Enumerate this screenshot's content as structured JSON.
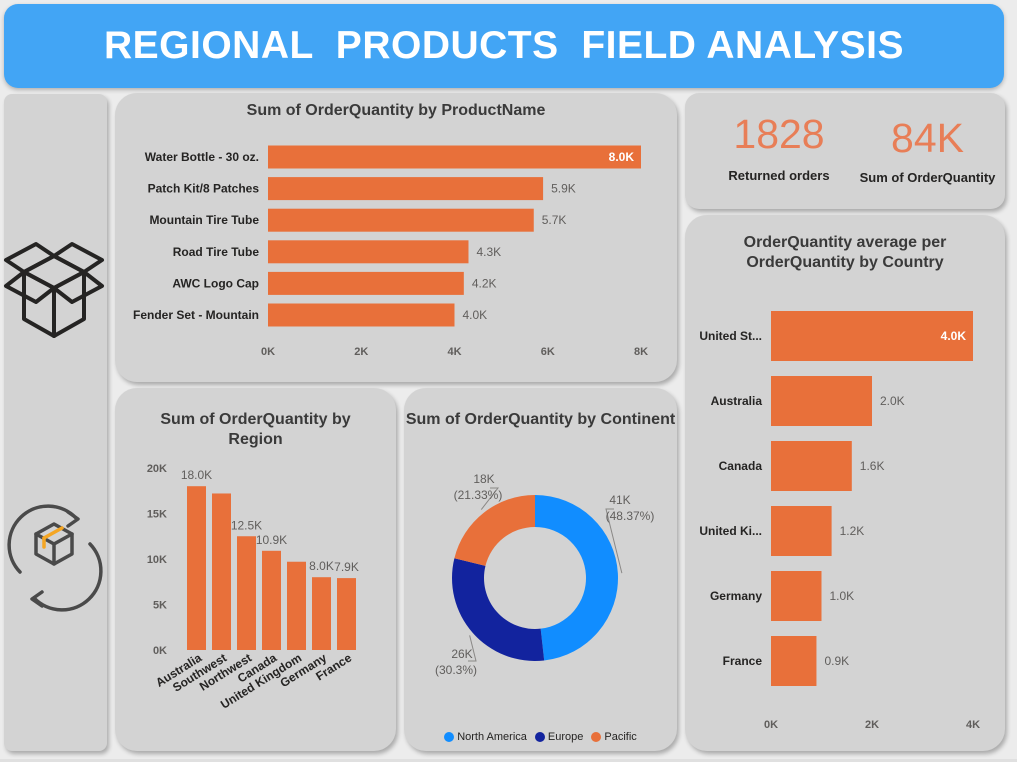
{
  "header": {
    "title": "REGIONAL  PRODUCTS  FIELD ANALYSIS"
  },
  "colors": {
    "header_bg": "#42a5f5",
    "bar": "#e8703a",
    "north_america": "#118dff",
    "europe": "#12239e",
    "pacific": "#e8703a",
    "kpi": "#e87e57"
  },
  "icons": {
    "top": "box-icon",
    "bottom": "box-refresh-icon"
  },
  "kpis": [
    {
      "value": "1828",
      "label": "Returned orders"
    },
    {
      "value": "84K",
      "label": "Sum of OrderQuantity"
    }
  ],
  "chart_data": [
    {
      "id": "product",
      "type": "bar",
      "orientation": "horizontal",
      "title": "Sum of OrderQuantity by ProductName",
      "categories": [
        "Water Bottle - 30 oz.",
        "Patch Kit/8 Patches",
        "Mountain Tire Tube",
        "Road Tire Tube",
        "AWC Logo Cap",
        "Fender Set - Mountain"
      ],
      "values": [
        8.0,
        5.9,
        5.7,
        4.3,
        4.2,
        4.0
      ],
      "data_labels": [
        "8.0K",
        "5.9K",
        "5.7K",
        "4.3K",
        "4.2K",
        "4.0K"
      ],
      "xlim": [
        0,
        8
      ],
      "x_ticks": [
        "0K",
        "2K",
        "4K",
        "6K",
        "8K"
      ],
      "unit": "thousands"
    },
    {
      "id": "region",
      "type": "bar",
      "orientation": "vertical",
      "title": "Sum of OrderQuantity by Region",
      "categories": [
        "Australia",
        "Southwest",
        "Northwest",
        "Canada",
        "United Kingdom",
        "Germany",
        "France"
      ],
      "values": [
        18.0,
        17.2,
        12.5,
        10.9,
        9.7,
        8.0,
        7.9
      ],
      "data_labels": [
        "18.0K",
        "",
        "12.5K",
        "10.9K",
        "",
        "8.0K",
        "7.9K"
      ],
      "ylim": [
        0,
        20
      ],
      "y_ticks": [
        "0K",
        "5K",
        "10K",
        "15K",
        "20K"
      ],
      "unit": "thousands"
    },
    {
      "id": "continent",
      "type": "pie",
      "donut": true,
      "title": "Sum of OrderQuantity by Continent",
      "series": [
        {
          "name": "North America",
          "value": 41,
          "label": "41K",
          "percent": "(48.37%)"
        },
        {
          "name": "Europe",
          "value": 26,
          "label": "26K",
          "percent": "(30.3%)"
        },
        {
          "name": "Pacific",
          "value": 18,
          "label": "18K",
          "percent": "(21.33%)"
        }
      ],
      "legend": "bottom"
    },
    {
      "id": "country",
      "type": "bar",
      "orientation": "horizontal",
      "title": "OrderQuantity average per OrderQuantity by Country",
      "categories": [
        "United St...",
        "Australia",
        "Canada",
        "United Ki...",
        "Germany",
        "France"
      ],
      "values": [
        4.0,
        2.0,
        1.6,
        1.2,
        1.0,
        0.9
      ],
      "data_labels": [
        "4.0K",
        "2.0K",
        "1.6K",
        "1.2K",
        "1.0K",
        "0.9K"
      ],
      "xlim": [
        0,
        4
      ],
      "x_ticks": [
        "0K",
        "2K",
        "4K"
      ],
      "unit": "thousands"
    }
  ]
}
